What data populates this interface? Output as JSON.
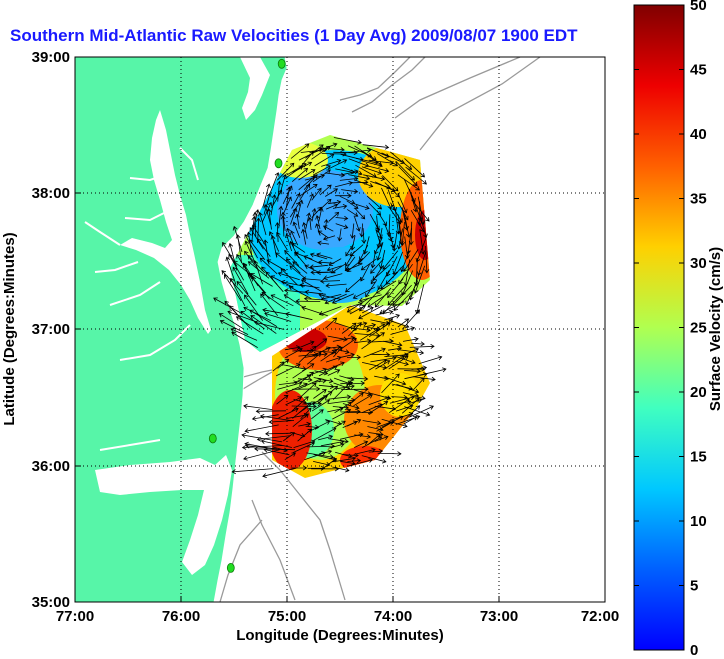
{
  "chart_data": {
    "type": "map",
    "title": "Southern Mid-Atlantic Raw Velocities (1 Day Avg) 2009/08/07 1900 EDT",
    "xlabel": "Longitude (Degrees:Minutes)",
    "ylabel": "Latitude (Degrees:Minutes)",
    "colorbar_label": "Surface Velocity (cm/s)",
    "x_ticks": [
      "77:00",
      "76:00",
      "75:00",
      "74:00",
      "73:00",
      "72:00"
    ],
    "y_ticks": [
      "39:00",
      "38:00",
      "37:00",
      "36:00",
      "35:00"
    ],
    "xlim": [
      -77,
      -72
    ],
    "ylim": [
      35,
      39
    ],
    "colorbar_range": [
      0,
      50
    ],
    "colorbar_ticks": [
      "0",
      "5",
      "10",
      "15",
      "20",
      "25",
      "30",
      "35",
      "40",
      "45",
      "50"
    ],
    "grid": true,
    "colors": {
      "land": "#57f5a8",
      "title": "#1a1aff",
      "vector": "#000000",
      "bathymetry": "#9a9a9a",
      "station": "#22dd22"
    },
    "stations": [
      {
        "lon": -75.05,
        "lat": 38.95
      },
      {
        "lon": -75.08,
        "lat": 38.22
      },
      {
        "lon": -75.7,
        "lat": 36.2
      },
      {
        "lon": -75.53,
        "lat": 35.25
      }
    ],
    "velocity_regions": [
      {
        "name": "northern",
        "lon": [
          -75.55,
          -73.65
        ],
        "lat": [
          36.85,
          38.5
        ],
        "speed_range": [
          8,
          45
        ]
      },
      {
        "name": "southern",
        "lon": [
          -75.05,
          -73.7
        ],
        "lat": [
          35.95,
          37.0
        ],
        "speed_range": [
          14,
          48
        ]
      }
    ]
  }
}
